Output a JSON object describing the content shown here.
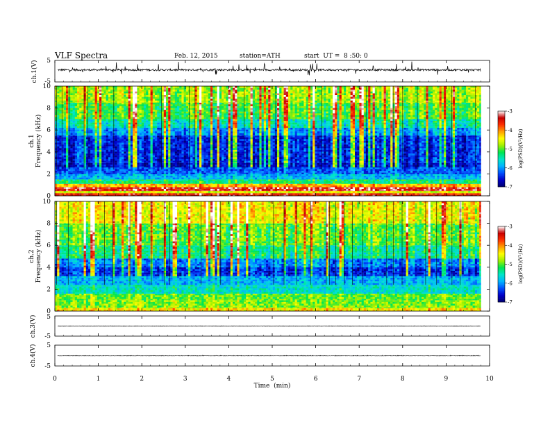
{
  "header": {
    "title": "VLF Spectra",
    "date": "Feb. 12, 2015",
    "station": "station=ATH",
    "start": "start  UT =  8 :50: 0"
  },
  "chart_data": {
    "type": "heatmap",
    "x_axis": {
      "label": "Time  (min)",
      "range": [
        0,
        10
      ],
      "ticks": [
        "0",
        "1",
        "2",
        "3",
        "4",
        "5",
        "6",
        "7",
        "8",
        "9",
        "10"
      ],
      "data_end_min": 9.8
    },
    "panels": [
      {
        "id": "ch1-waveform",
        "type": "line",
        "ylabel": "ch.1(V)",
        "ylim": [
          -5,
          5
        ],
        "yticks": [
          "5",
          "-5"
        ],
        "baseline_v": 0.6,
        "noise_v": 0.45
      },
      {
        "id": "ch1-spectrogram",
        "type": "heatmap",
        "ylabel_top": "ch.1",
        "ylabel": "Frequency  (kHz)",
        "ylim": [
          0,
          10
        ],
        "yticks": [
          "0",
          "2",
          "4",
          "6",
          "8",
          "10"
        ],
        "colorbar": {
          "label": "log(PSD)(V²/Hz)",
          "range": [
            -7,
            -3
          ],
          "ticks": [
            "-3",
            "-4",
            "-5",
            "-6",
            "-7"
          ]
        },
        "bands": [
          {
            "f_kHz": [
              0.0,
              0.25
            ],
            "log_psd": -3.6
          },
          {
            "f_kHz": [
              0.25,
              0.45
            ],
            "log_psd": -4.6
          },
          {
            "f_kHz": [
              0.45,
              0.8
            ],
            "log_psd": -3.4
          },
          {
            "f_kHz": [
              0.8,
              1.1
            ],
            "log_psd": -4.2
          },
          {
            "f_kHz": [
              1.1,
              1.5
            ],
            "log_psd": -5.3
          },
          {
            "f_kHz": [
              1.5,
              2.0
            ],
            "log_psd": -5.9
          },
          {
            "f_kHz": [
              2.0,
              2.6
            ],
            "log_psd": -6.3
          },
          {
            "f_kHz": [
              2.6,
              3.0
            ],
            "log_psd": -6.6
          },
          {
            "f_kHz": [
              3.0,
              5.5
            ],
            "log_psd": -6.45
          },
          {
            "f_kHz": [
              5.5,
              6.2
            ],
            "log_psd": -6.0
          },
          {
            "f_kHz": [
              6.2,
              7.0
            ],
            "log_psd": -5.5
          },
          {
            "f_kHz": [
              7.0,
              8.5
            ],
            "log_psd": -5.05
          },
          {
            "f_kHz": [
              8.5,
              10.0
            ],
            "log_psd": -4.75
          }
        ]
      },
      {
        "id": "ch2-spectrogram",
        "type": "heatmap",
        "ylabel_top": "ch.2",
        "ylabel": "Frequency  (kHz)",
        "ylim": [
          0,
          10
        ],
        "yticks": [
          "0",
          "2",
          "4",
          "6",
          "8",
          "10"
        ],
        "colorbar": {
          "label": "log(PSD)(V²/Hz)",
          "range": [
            -7,
            -3
          ],
          "ticks": [
            "-3",
            "-4",
            "-5",
            "-6",
            "-7"
          ]
        },
        "bands": [
          {
            "f_kHz": [
              0.0,
              0.3
            ],
            "log_psd": -4.4
          },
          {
            "f_kHz": [
              0.3,
              1.0
            ],
            "log_psd": -4.9
          },
          {
            "f_kHz": [
              1.0,
              1.6
            ],
            "log_psd": -5.0
          },
          {
            "f_kHz": [
              1.6,
              2.4
            ],
            "log_psd": -5.6
          },
          {
            "f_kHz": [
              2.4,
              3.2
            ],
            "log_psd": -5.9
          },
          {
            "f_kHz": [
              3.2,
              4.0
            ],
            "log_psd": -6.45
          },
          {
            "f_kHz": [
              4.0,
              4.8
            ],
            "log_psd": -6.1
          },
          {
            "f_kHz": [
              4.8,
              6.0
            ],
            "log_psd": -5.35
          },
          {
            "f_kHz": [
              6.0,
              8.0
            ],
            "log_psd": -5.0
          },
          {
            "f_kHz": [
              8.0,
              10.0
            ],
            "log_psd": -4.5
          }
        ]
      },
      {
        "id": "ch3-waveform",
        "type": "line",
        "ylabel": "ch.3(V)",
        "ylim": [
          -5,
          5
        ],
        "yticks": [
          "5",
          "-5"
        ],
        "baseline_v": 0.0,
        "noise_v": 0.12
      },
      {
        "id": "ch4-waveform",
        "type": "line",
        "ylabel": "ch.4(V)",
        "ylim": [
          -5,
          5
        ],
        "yticks": [
          "5",
          "-5"
        ],
        "baseline_v": 0.0,
        "noise_v": 0.22
      }
    ],
    "colormap": [
      "#000070",
      "#0000c8",
      "#0050ff",
      "#00b4ff",
      "#00e6c8",
      "#00e650",
      "#a0f000",
      "#ffff00",
      "#ffa000",
      "#ff3000",
      "#c80000",
      "#ffffff"
    ]
  }
}
